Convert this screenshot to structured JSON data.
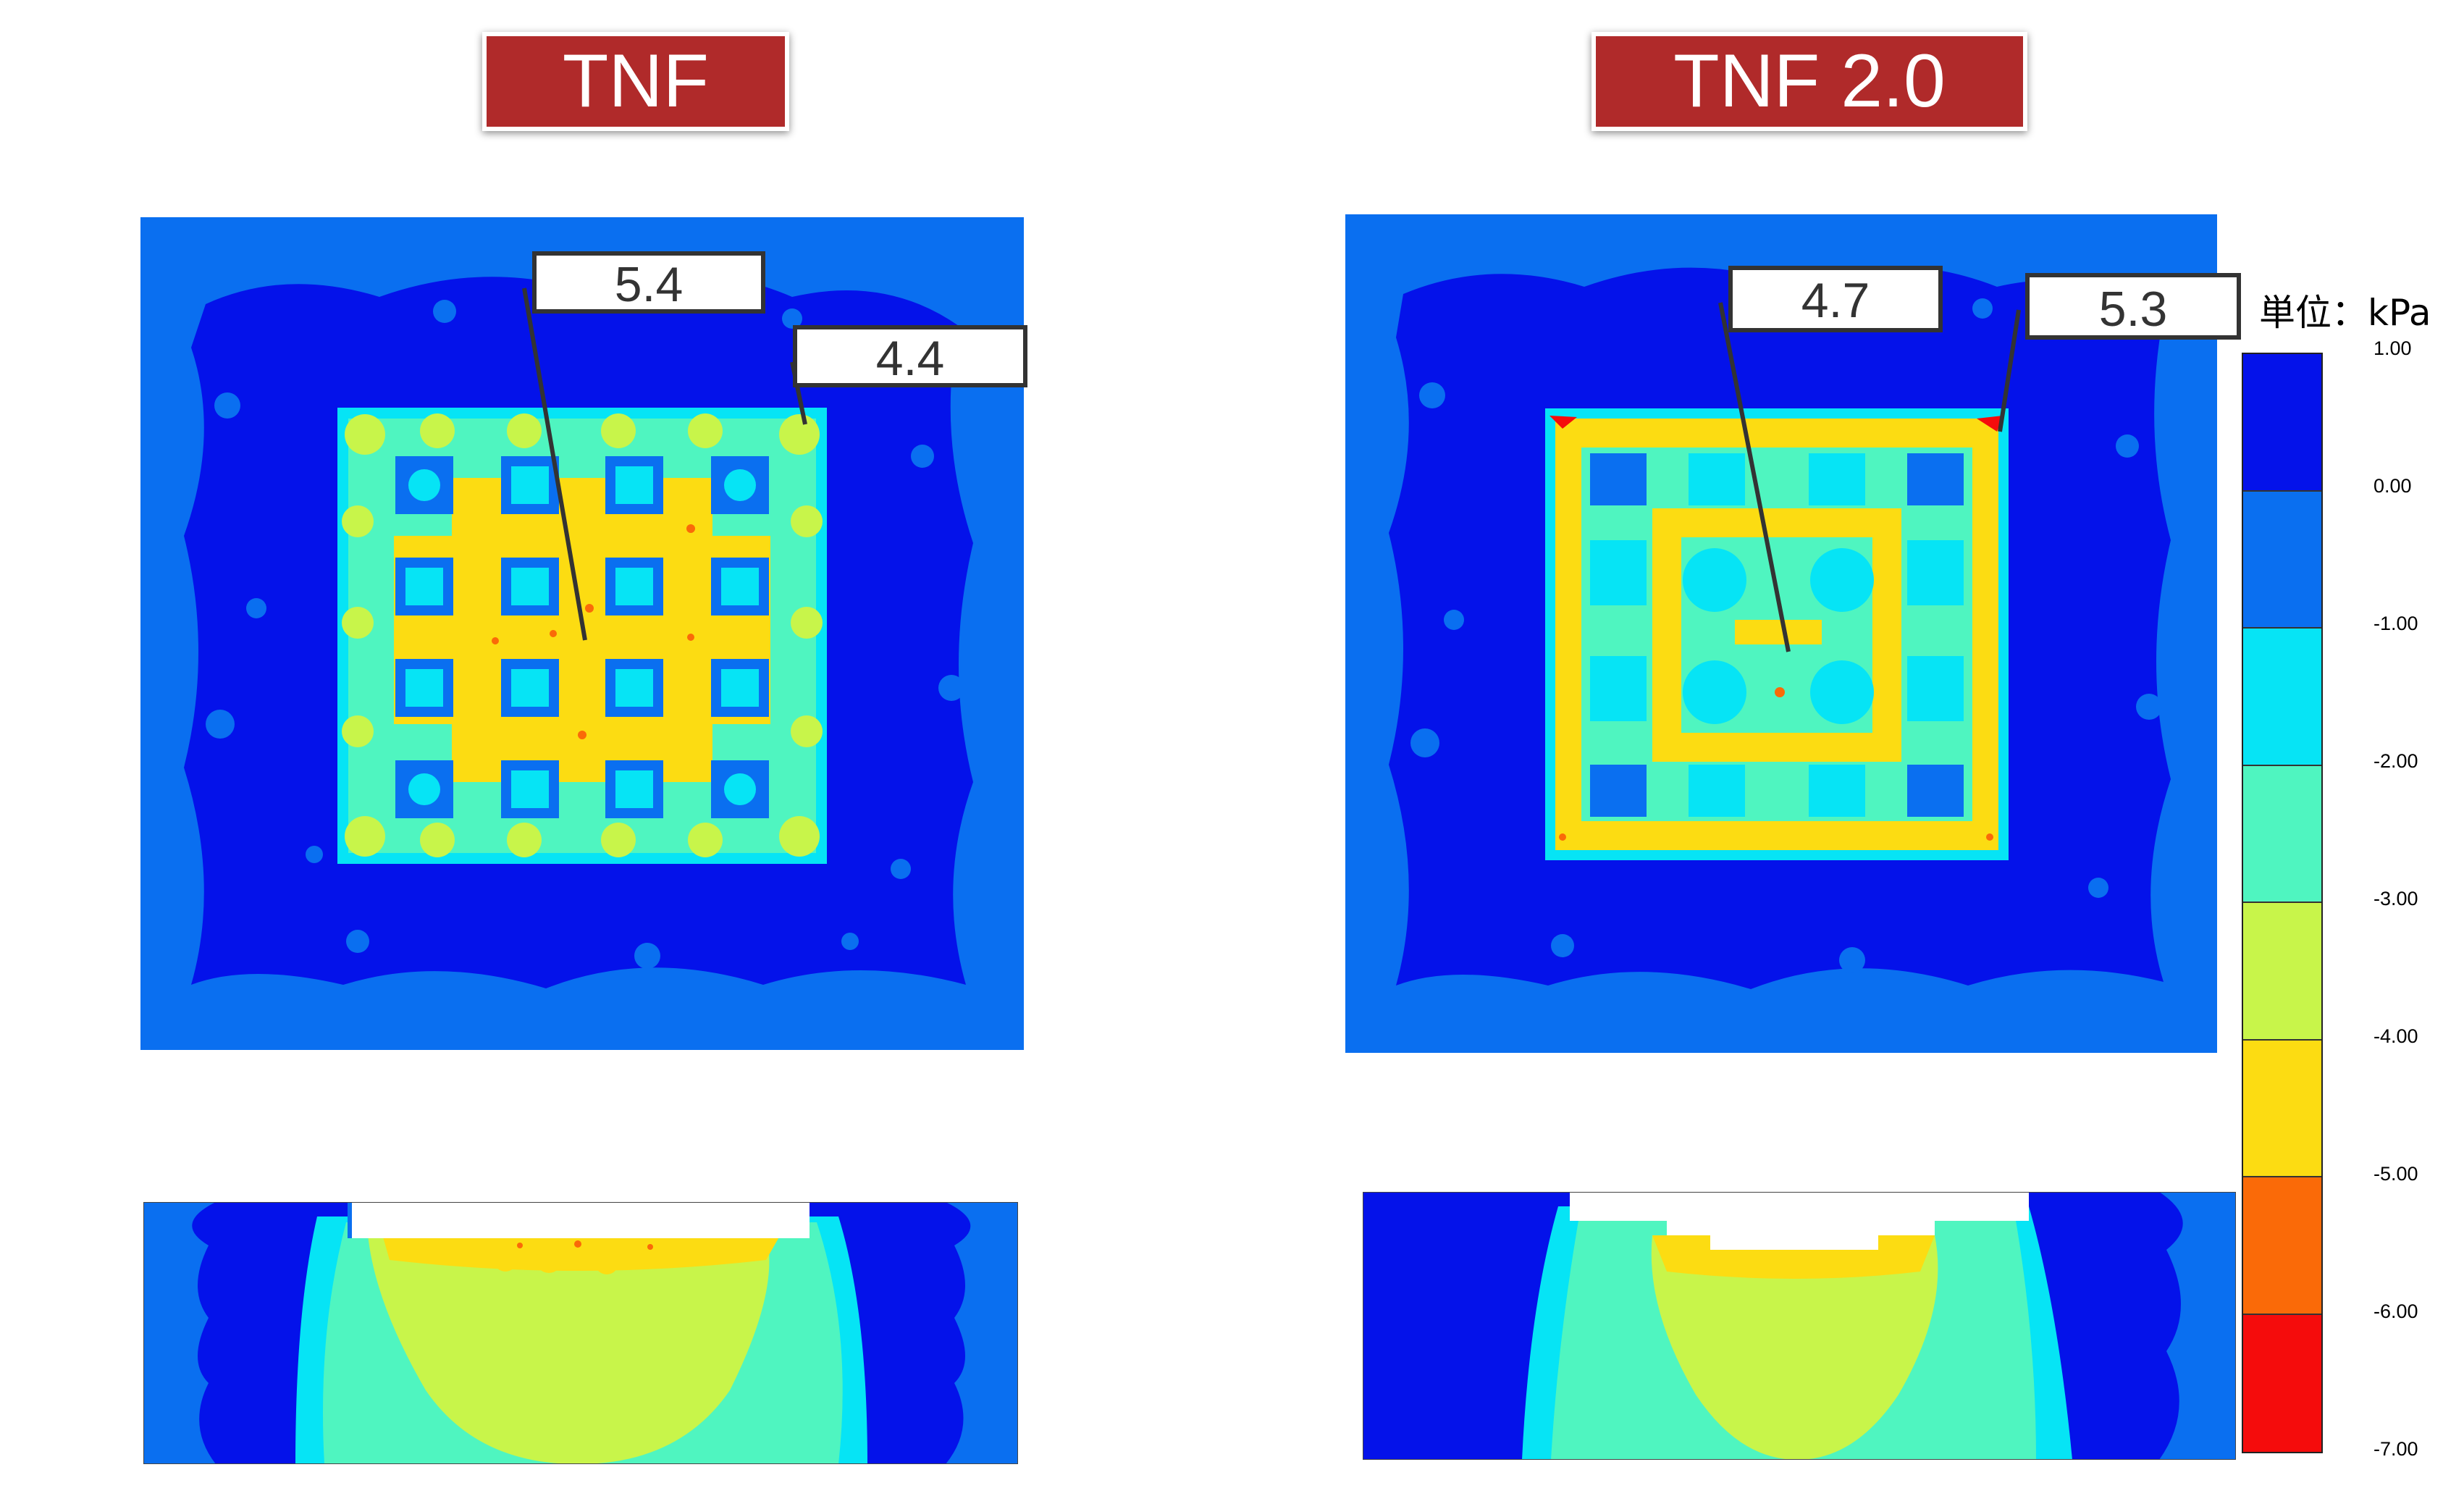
{
  "panels": [
    {
      "title": "TNF",
      "callouts": [
        "5.4",
        "4.4"
      ]
    },
    {
      "title": "TNF 2.0",
      "callouts": [
        "4.7",
        "5.3"
      ]
    }
  ],
  "legend": {
    "unit": "単位：kPa",
    "ticks": [
      "1.00",
      "0.00",
      "-1.00",
      "-2.00",
      "-3.00",
      "-4.00",
      "-5.00",
      "-6.00",
      "-7.00"
    ],
    "colors": [
      "#0412ea",
      "#0a6ff0",
      "#06e4f5",
      "#4ff5c0",
      "#c8f54a",
      "#fcdc12",
      "#fa6a08",
      "#f50c0c"
    ]
  }
}
